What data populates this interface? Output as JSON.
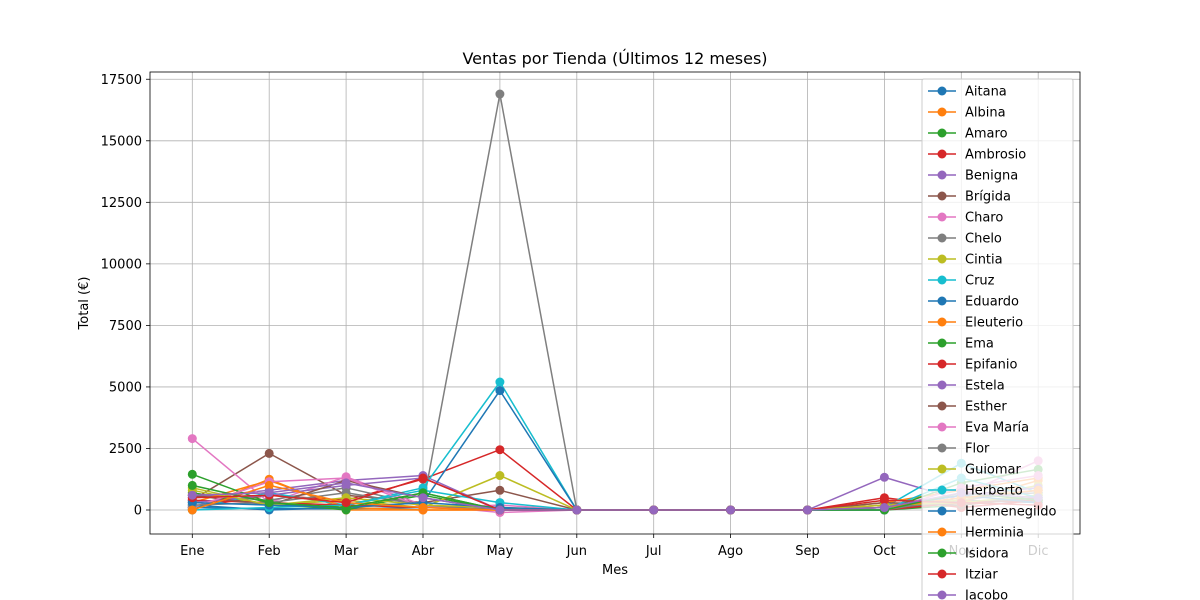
{
  "chart_data": {
    "type": "line",
    "title": "Ventas por Tienda (Últimos 12 meses)",
    "xlabel": "Mes",
    "ylabel": "Total (€)",
    "categories": [
      "Ene",
      "Feb",
      "Mar",
      "Abr",
      "May",
      "Jun",
      "Jul",
      "Ago",
      "Sep",
      "Oct",
      "Nov",
      "Dic"
    ],
    "ylim": [
      -1000,
      17800
    ],
    "yticks": [
      0,
      2500,
      5000,
      7500,
      10000,
      12500,
      15000,
      17500
    ],
    "grid": true,
    "legend_position": "right",
    "series": [
      {
        "name": "Aitana",
        "color": "#1f77b4",
        "values": [
          100,
          50,
          50,
          100,
          50,
          0,
          0,
          0,
          0,
          0,
          400,
          300
        ]
      },
      {
        "name": "Albina",
        "color": "#ff7f0e",
        "values": [
          0,
          1250,
          0,
          0,
          0,
          0,
          0,
          0,
          0,
          100,
          300,
          1200
        ]
      },
      {
        "name": "Amaro",
        "color": "#2ca02c",
        "values": [
          700,
          200,
          50,
          600,
          0,
          0,
          0,
          0,
          0,
          0,
          200,
          600
        ]
      },
      {
        "name": "Ambrosio",
        "color": "#d62728",
        "values": [
          100,
          600,
          400,
          1250,
          2450,
          0,
          0,
          0,
          0,
          500,
          100,
          400
        ]
      },
      {
        "name": "Benigna",
        "color": "#9467bd",
        "values": [
          500,
          800,
          1200,
          1400,
          0,
          0,
          0,
          0,
          0,
          1330,
          400,
          800
        ]
      },
      {
        "name": "Brígida",
        "color": "#8c564b",
        "values": [
          400,
          2300,
          600,
          300,
          800,
          0,
          0,
          0,
          0,
          100,
          500,
          800
        ]
      },
      {
        "name": "Charo",
        "color": "#e377c2",
        "values": [
          2900,
          300,
          1350,
          200,
          -100,
          0,
          0,
          0,
          0,
          200,
          600,
          2000
        ]
      },
      {
        "name": "Chelo",
        "color": "#7f7f7f",
        "values": [
          600,
          400,
          900,
          200,
          16900,
          0,
          0,
          0,
          0,
          100,
          300,
          500
        ]
      },
      {
        "name": "Cintia",
        "color": "#bcbd22",
        "values": [
          800,
          200,
          400,
          100,
          1400,
          0,
          0,
          0,
          0,
          200,
          400,
          1000
        ]
      },
      {
        "name": "Cruz",
        "color": "#17becf",
        "values": [
          100,
          700,
          200,
          900,
          5200,
          0,
          0,
          0,
          0,
          100,
          1900,
          700
        ]
      },
      {
        "name": "Eduardo",
        "color": "#1f77b4",
        "values": [
          200,
          0,
          100,
          300,
          4850,
          0,
          0,
          0,
          0,
          0,
          300,
          400
        ]
      },
      {
        "name": "Eleuterio",
        "color": "#ff7f0e",
        "values": [
          300,
          1200,
          100,
          0,
          0,
          0,
          0,
          0,
          0,
          300,
          800,
          1300
        ]
      },
      {
        "name": "Ema",
        "color": "#2ca02c",
        "values": [
          1450,
          300,
          0,
          700,
          0,
          0,
          0,
          0,
          0,
          0,
          1100,
          1650
        ]
      },
      {
        "name": "Epifanio",
        "color": "#d62728",
        "values": [
          400,
          300,
          200,
          100,
          0,
          0,
          0,
          0,
          0,
          0,
          300,
          400
        ]
      },
      {
        "name": "Estela",
        "color": "#9467bd",
        "values": [
          300,
          600,
          1000,
          1300,
          0,
          0,
          0,
          0,
          0,
          100,
          600,
          900
        ]
      },
      {
        "name": "Esther",
        "color": "#8c564b",
        "values": [
          600,
          200,
          1200,
          500,
          0,
          0,
          0,
          0,
          0,
          300,
          200,
          500
        ]
      },
      {
        "name": "Eva María",
        "color": "#e377c2",
        "values": [
          100,
          1150,
          1300,
          100,
          200,
          0,
          0,
          0,
          0,
          0,
          900,
          1400
        ]
      },
      {
        "name": "Flor",
        "color": "#7f7f7f",
        "values": [
          200,
          300,
          700,
          200,
          0,
          0,
          0,
          0,
          0,
          0,
          500,
          700
        ]
      },
      {
        "name": "Guiomar",
        "color": "#bcbd22",
        "values": [
          900,
          200,
          500,
          200,
          100,
          0,
          0,
          0,
          0,
          200,
          300,
          600
        ]
      },
      {
        "name": "Herberto",
        "color": "#17becf",
        "values": [
          0,
          100,
          200,
          800,
          300,
          0,
          0,
          0,
          0,
          0,
          1300,
          500
        ]
      },
      {
        "name": "Hermenegildo",
        "color": "#1f77b4",
        "values": [
          300,
          200,
          100,
          300,
          100,
          0,
          0,
          0,
          0,
          100,
          600,
          300
        ]
      },
      {
        "name": "Herminia",
        "color": "#ff7f0e",
        "values": [
          0,
          1000,
          300,
          100,
          0,
          0,
          0,
          0,
          0,
          100,
          500,
          800
        ]
      },
      {
        "name": "Isidora",
        "color": "#2ca02c",
        "values": [
          1000,
          300,
          100,
          700,
          0,
          0,
          0,
          0,
          0,
          0,
          700,
          400
        ]
      },
      {
        "name": "Itziar",
        "color": "#d62728",
        "values": [
          500,
          600,
          300,
          1300,
          0,
          0,
          0,
          0,
          0,
          400,
          300,
          200
        ]
      },
      {
        "name": "Jacobo",
        "color": "#9467bd",
        "values": [
          600,
          700,
          1100,
          500,
          0,
          0,
          0,
          0,
          0,
          100,
          700,
          500
        ]
      }
    ]
  }
}
